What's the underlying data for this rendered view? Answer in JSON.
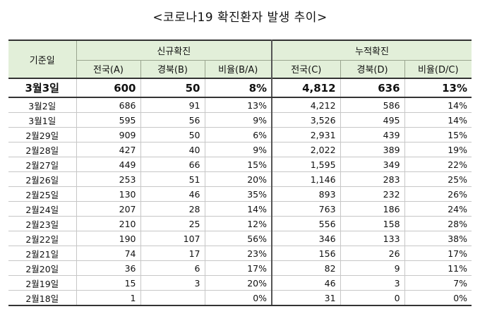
{
  "title": "<코로나19 확진환자 발생 추이>",
  "headers": {
    "date": "기준일",
    "new_group": "신규확진",
    "cum_group": "누적확진",
    "new_cols": [
      "전국(A)",
      "경북(B)",
      "비율(B/A)"
    ],
    "cum_cols": [
      "전국(C)",
      "경북(D)",
      "비율(D/C)"
    ]
  },
  "rows": [
    [
      "3월3일",
      "600",
      "50",
      "8%",
      "4,812",
      "636",
      "13%"
    ],
    [
      "3월2일",
      "686",
      "91",
      "13%",
      "4,212",
      "586",
      "14%"
    ],
    [
      "3월1일",
      "595",
      "56",
      "9%",
      "3,526",
      "495",
      "14%"
    ],
    [
      "2월29일",
      "909",
      "50",
      "6%",
      "2,931",
      "439",
      "15%"
    ],
    [
      "2월28일",
      "427",
      "40",
      "9%",
      "2,022",
      "389",
      "19%"
    ],
    [
      "2월27일",
      "449",
      "66",
      "15%",
      "1,595",
      "349",
      "22%"
    ],
    [
      "2월26일",
      "253",
      "51",
      "20%",
      "1,146",
      "283",
      "25%"
    ],
    [
      "2월25일",
      "130",
      "46",
      "35%",
      "893",
      "232",
      "26%"
    ],
    [
      "2월24일",
      "207",
      "28",
      "14%",
      "763",
      "186",
      "24%"
    ],
    [
      "2월23일",
      "210",
      "25",
      "12%",
      "556",
      "158",
      "28%"
    ],
    [
      "2월22일",
      "190",
      "107",
      "56%",
      "346",
      "133",
      "38%"
    ],
    [
      "2월21일",
      "74",
      "17",
      "23%",
      "156",
      "26",
      "17%"
    ],
    [
      "2월20일",
      "36",
      "6",
      "17%",
      "82",
      "9",
      "11%"
    ],
    [
      "2월19일",
      "15",
      "3",
      "20%",
      "46",
      "3",
      "7%"
    ],
    [
      "2월18일",
      "1",
      "",
      "0%",
      "31",
      "0",
      "0%"
    ]
  ]
}
